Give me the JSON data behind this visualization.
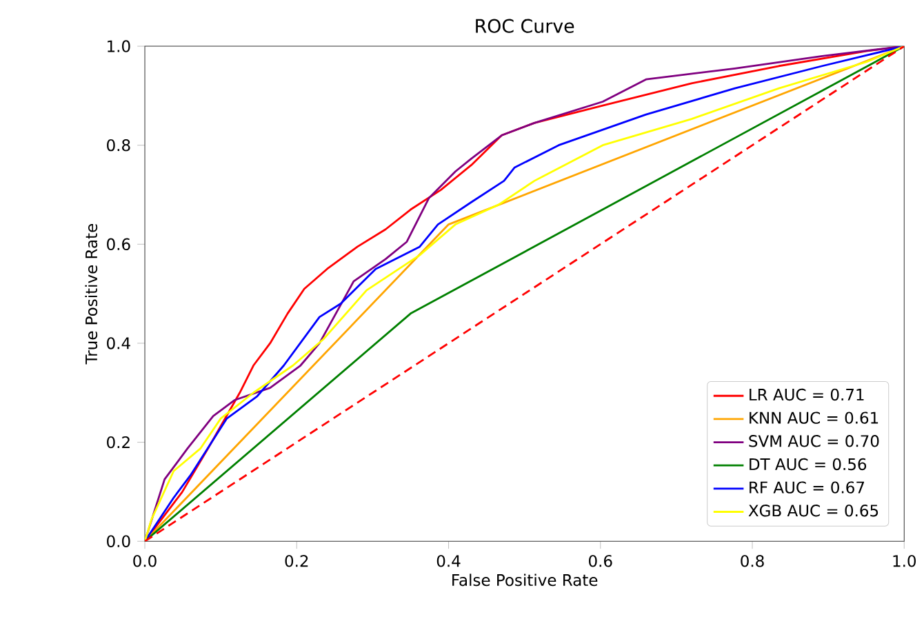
{
  "chart_data": {
    "type": "line",
    "title": "ROC Curve",
    "xlabel": "False Positive Rate",
    "ylabel": "True Positive Rate",
    "xlim": [
      0,
      1
    ],
    "ylim": [
      0,
      1
    ],
    "xticks": [
      {
        "value": 0,
        "label": "0.0"
      },
      0.2,
      0.4,
      0.6,
      0.8,
      {
        "value": 1,
        "label": "1.0"
      }
    ],
    "yticks": [
      {
        "value": 0,
        "label": "0.0"
      },
      0.2,
      0.4,
      0.6,
      0.8,
      {
        "value": 1,
        "label": "1.0"
      }
    ],
    "legend": "bottom right",
    "grid": false,
    "series": [
      {
        "name": "LR AUC = 0.71",
        "color": "#ff0000",
        "x": [
          0,
          0.049,
          0.083,
          0.125,
          0.143,
          0.165,
          0.188,
          0.21,
          0.24,
          0.28,
          0.317,
          0.35,
          0.39,
          0.43,
          0.47,
          0.513,
          0.603,
          0.72,
          0.835,
          0.95,
          1
        ],
        "values": [
          0,
          0.099,
          0.187,
          0.3,
          0.355,
          0.4,
          0.46,
          0.51,
          0.55,
          0.595,
          0.63,
          0.67,
          0.71,
          0.76,
          0.82,
          0.845,
          0.88,
          0.925,
          0.96,
          0.99,
          1
        ]
      },
      {
        "name": "KNN AUC = 0.61",
        "color": "#ffa500",
        "x": [
          0,
          0.4,
          1
        ],
        "values": [
          0,
          0.64,
          1
        ]
      },
      {
        "name": "SVM AUC = 0.70",
        "color": "#800080",
        "x": [
          0,
          0.026,
          0.056,
          0.09,
          0.118,
          0.165,
          0.205,
          0.23,
          0.275,
          0.317,
          0.345,
          0.374,
          0.409,
          0.43,
          0.47,
          0.513,
          0.603,
          0.66,
          0.777,
          0.892,
          1
        ],
        "values": [
          0,
          0.125,
          0.187,
          0.253,
          0.285,
          0.31,
          0.355,
          0.4,
          0.525,
          0.57,
          0.605,
          0.693,
          0.747,
          0.773,
          0.82,
          0.845,
          0.888,
          0.933,
          0.955,
          0.98,
          1
        ]
      },
      {
        "name": "DT AUC = 0.56",
        "color": "#008000",
        "x": [
          0,
          0.35,
          1
        ],
        "values": [
          0,
          0.46,
          1
        ]
      },
      {
        "name": "RF AUC = 0.67",
        "color": "#0000ff",
        "x": [
          0,
          0.038,
          0.06,
          0.108,
          0.148,
          0.183,
          0.23,
          0.258,
          0.304,
          0.362,
          0.386,
          0.43,
          0.473,
          0.487,
          0.545,
          0.66,
          0.777,
          0.892,
          1
        ],
        "values": [
          0,
          0.088,
          0.133,
          0.248,
          0.293,
          0.355,
          0.453,
          0.48,
          0.55,
          0.595,
          0.64,
          0.685,
          0.728,
          0.755,
          0.8,
          0.862,
          0.915,
          0.96,
          1
        ]
      },
      {
        "name": "XGB AUC = 0.65",
        "color": "#ffff00",
        "x": [
          0,
          0.009,
          0.038,
          0.073,
          0.1,
          0.143,
          0.195,
          0.235,
          0.292,
          0.362,
          0.409,
          0.466,
          0.513,
          0.603,
          0.72,
          0.835,
          0.95,
          1
        ],
        "values": [
          0,
          0.045,
          0.142,
          0.187,
          0.248,
          0.3,
          0.355,
          0.408,
          0.507,
          0.578,
          0.64,
          0.68,
          0.728,
          0.8,
          0.853,
          0.915,
          0.968,
          1
        ]
      },
      {
        "color": "#ff0000",
        "line_style": "dashed",
        "x": [
          0,
          1
        ],
        "values": [
          0,
          1
        ]
      }
    ]
  }
}
